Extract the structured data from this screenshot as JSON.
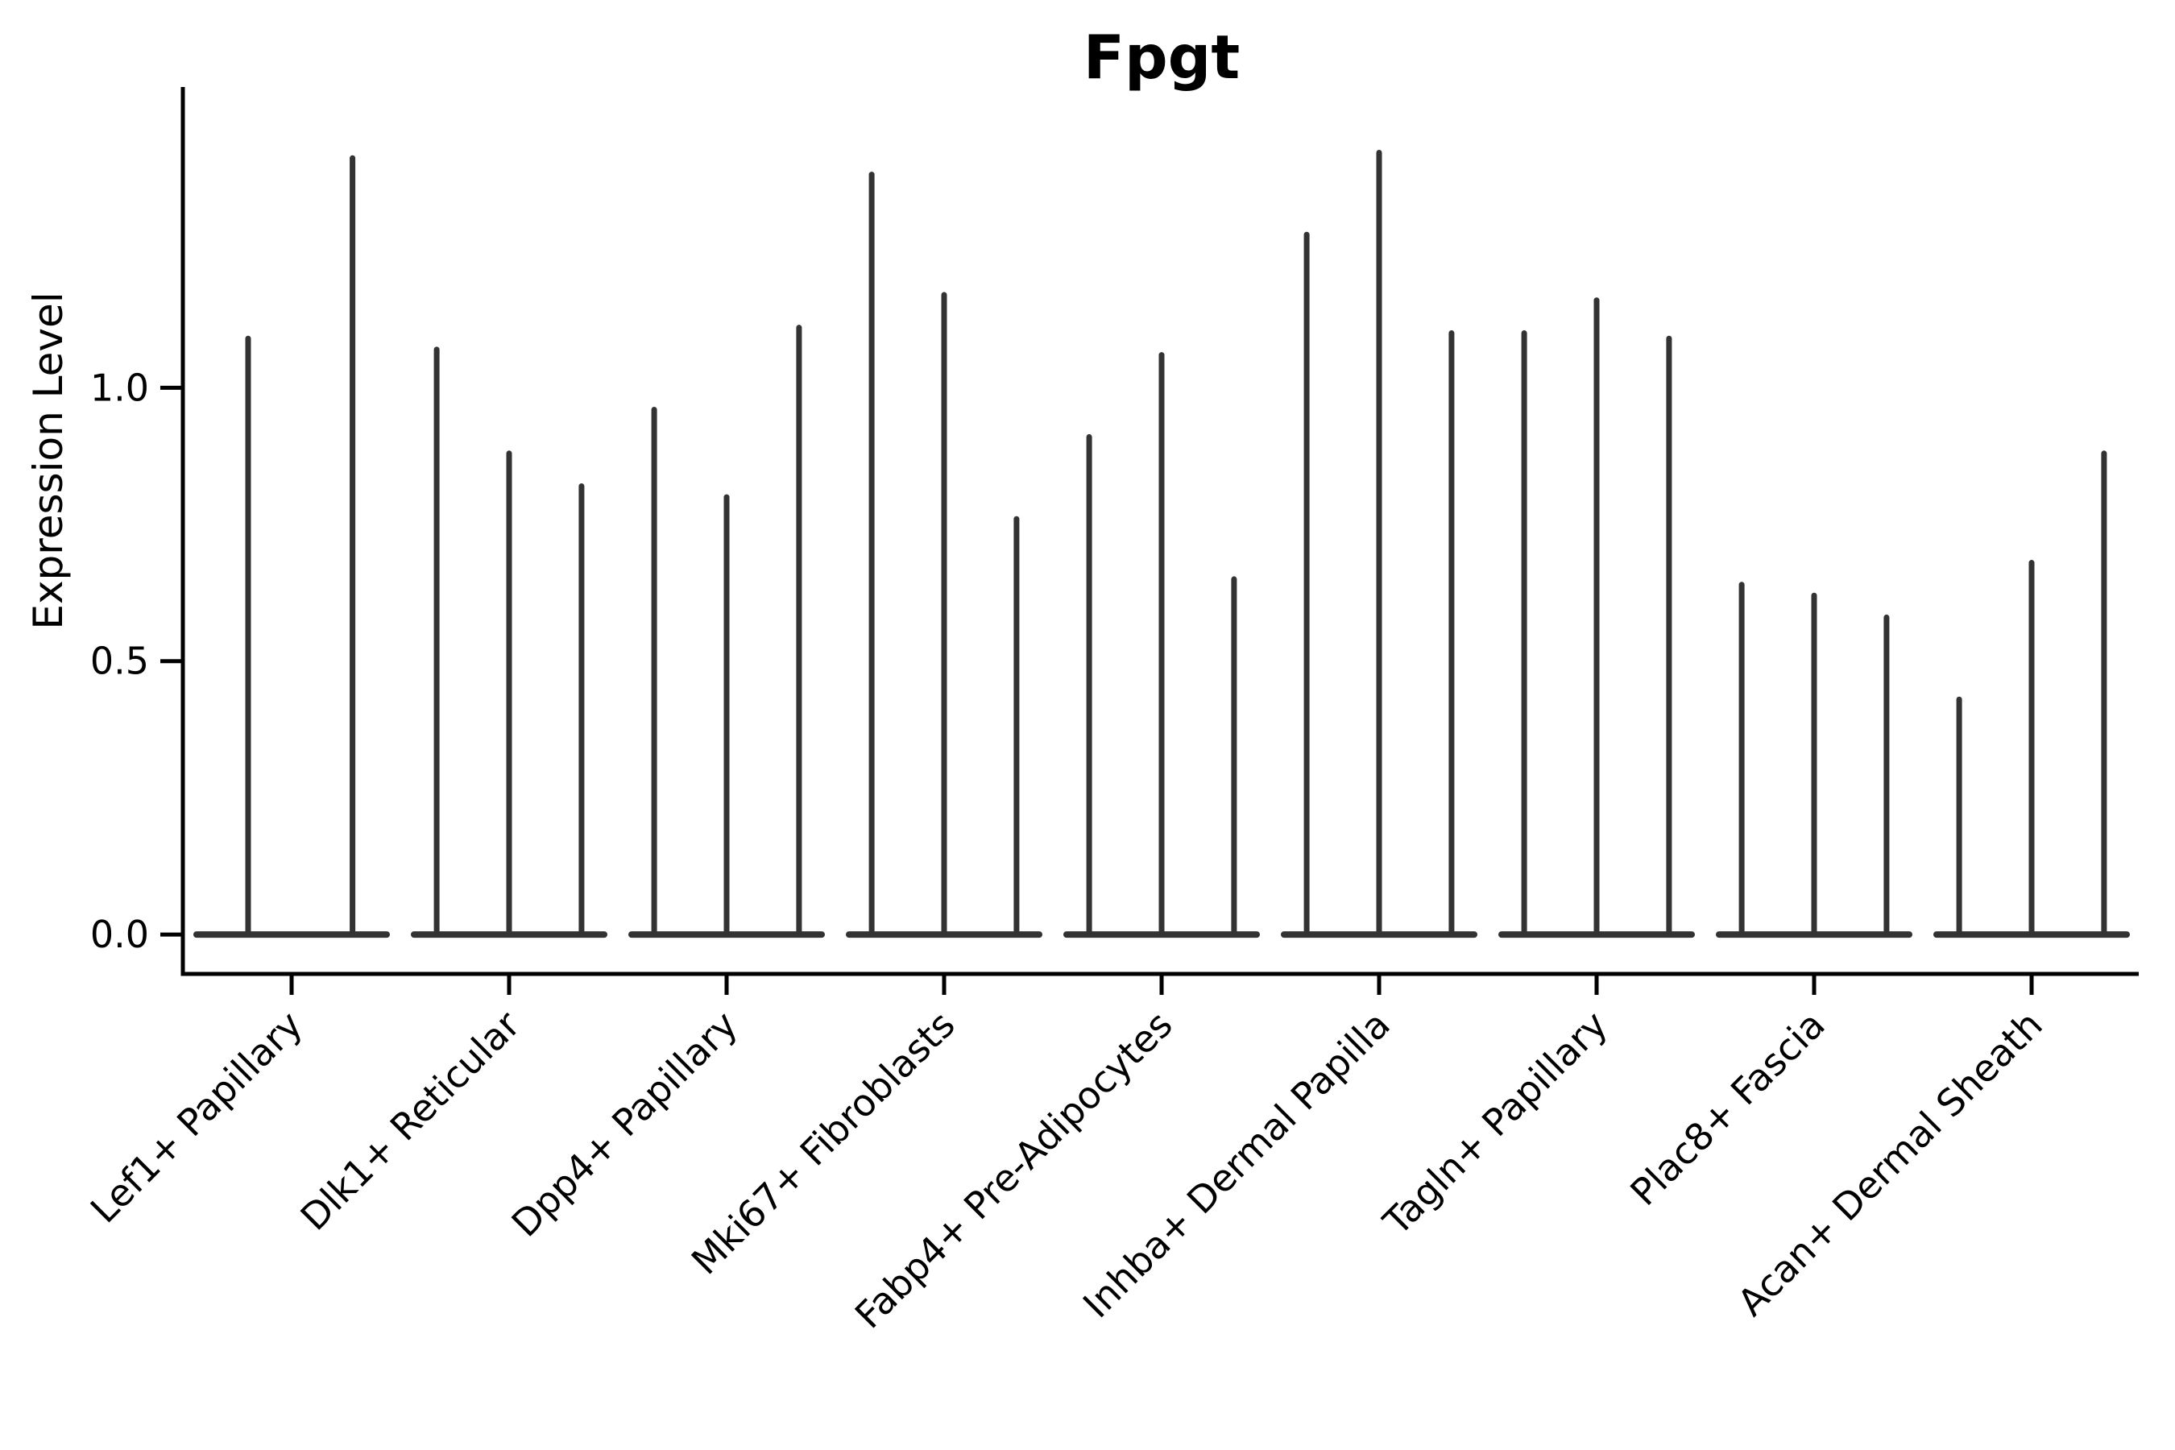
{
  "chart_data": {
    "type": "violin",
    "title": "Fpgt",
    "ylabel": "Expression Level",
    "xlabel": "",
    "ylim": [
      -0.072,
      1.55
    ],
    "yticks": [
      {
        "value": 0.0,
        "label": "0.0"
      },
      {
        "value": 0.5,
        "label": "0.5"
      },
      {
        "value": 1.0,
        "label": "1.0"
      }
    ],
    "grid": false,
    "legend": "none",
    "categories": [
      "Lef1+ Papillary",
      "Dlk1+ Reticular",
      "Dpp4+ Papillary",
      "Mki67+ Fibroblasts",
      "Fabp4+ Pre-Adipocytes",
      "Inhba+ Dermal Papilla",
      "Tagln+ Papillary",
      "Plac8+ Fascia",
      "Acan+ Dermal Sheath"
    ],
    "groups": [
      {
        "category": "Lef1+ Papillary",
        "violins": [
          {
            "pos": 0.3,
            "max": 1.09
          },
          {
            "pos": 0.78,
            "max": 1.42
          }
        ]
      },
      {
        "category": "Dlk1+ Reticular",
        "violins": [
          {
            "pos": 0.167,
            "max": 1.07
          },
          {
            "pos": 0.5,
            "max": 0.88
          },
          {
            "pos": 0.833,
            "max": 0.82
          }
        ]
      },
      {
        "category": "Dpp4+ Papillary",
        "violins": [
          {
            "pos": 0.167,
            "max": 0.96
          },
          {
            "pos": 0.5,
            "max": 0.8
          },
          {
            "pos": 0.833,
            "max": 1.11
          }
        ]
      },
      {
        "category": "Mki67+ Fibroblasts",
        "violins": [
          {
            "pos": 0.167,
            "max": 1.39
          },
          {
            "pos": 0.5,
            "max": 1.17
          },
          {
            "pos": 0.833,
            "max": 0.76
          }
        ]
      },
      {
        "category": "Fabp4+ Pre-Adipocytes",
        "violins": [
          {
            "pos": 0.167,
            "max": 0.91
          },
          {
            "pos": 0.5,
            "max": 1.06
          },
          {
            "pos": 0.833,
            "max": 0.65
          }
        ]
      },
      {
        "category": "Inhba+ Dermal Papilla",
        "violins": [
          {
            "pos": 0.167,
            "max": 1.28
          },
          {
            "pos": 0.5,
            "max": 1.43
          },
          {
            "pos": 0.833,
            "max": 1.1
          }
        ]
      },
      {
        "category": "Tagln+ Papillary",
        "violins": [
          {
            "pos": 0.167,
            "max": 1.1
          },
          {
            "pos": 0.5,
            "max": 1.16
          },
          {
            "pos": 0.833,
            "max": 1.09
          }
        ]
      },
      {
        "category": "Plac8+ Fascia",
        "violins": [
          {
            "pos": 0.167,
            "max": 0.64
          },
          {
            "pos": 0.5,
            "max": 0.62
          },
          {
            "pos": 0.833,
            "max": 0.58
          }
        ]
      },
      {
        "category": "Acan+ Dermal Sheath",
        "violins": [
          {
            "pos": 0.167,
            "max": 0.43
          },
          {
            "pos": 0.5,
            "max": 0.68
          },
          {
            "pos": 0.833,
            "max": 0.88
          }
        ]
      }
    ],
    "style": {
      "violin_color": "#333333",
      "axis_color": "#000000",
      "text_color": "#000000",
      "background": "#ffffff"
    }
  }
}
